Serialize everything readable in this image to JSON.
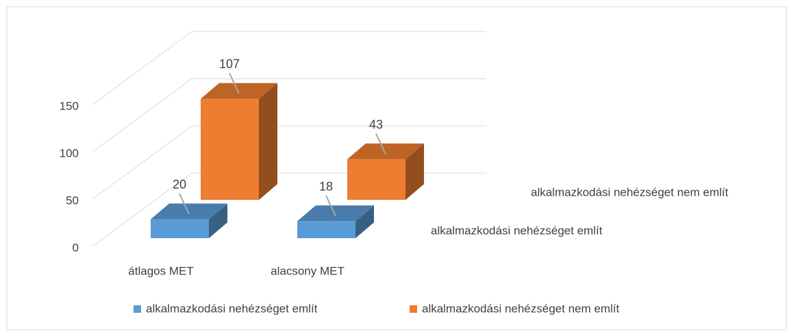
{
  "chart_data": {
    "type": "bar3d",
    "categories": [
      "átlagos MET",
      "alacsony MET"
    ],
    "series": [
      {
        "name": "alkalmazkodási nehézséget említ",
        "color": "#5b9bd5",
        "values": [
          20,
          18
        ]
      },
      {
        "name": "alkalmazkodási nehézséget nem említ",
        "color": "#ed7d31",
        "values": [
          107,
          43
        ]
      }
    ],
    "ylim": [
      0,
      150
    ],
    "yticks": [
      0,
      50,
      100,
      150
    ],
    "grid": true,
    "legend": "bottom"
  }
}
